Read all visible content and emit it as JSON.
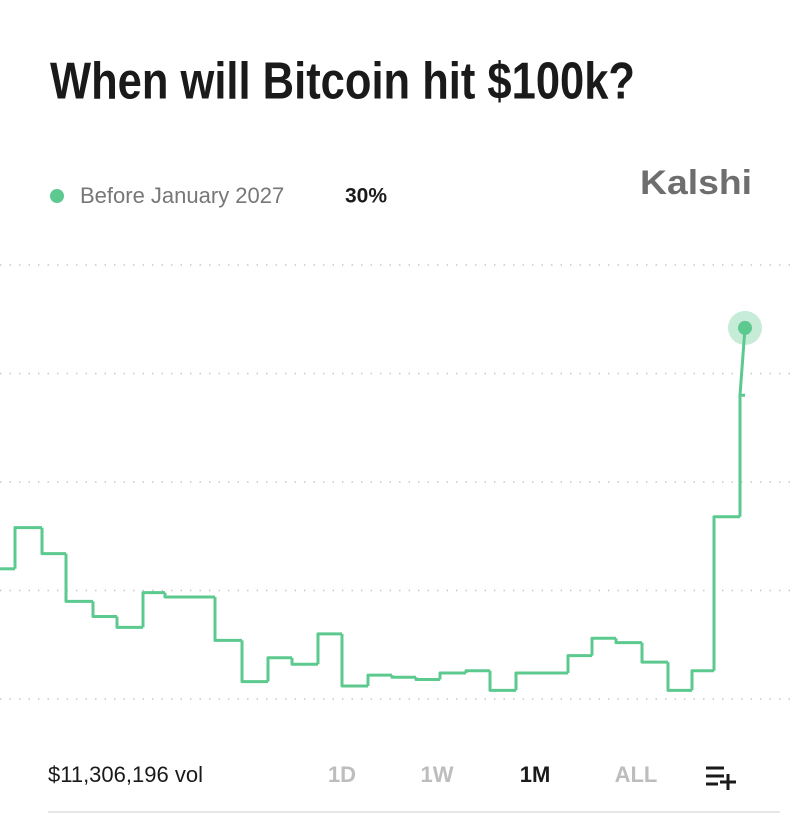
{
  "header": {
    "title": "When will Bitcoin hit $100k?"
  },
  "brand": "Kalshi",
  "chart_data": {
    "type": "step",
    "x": [
      0,
      0.6,
      1.68,
      2.64,
      3.72,
      4.68,
      5.72,
      6.6,
      8.6,
      9.68,
      10.72,
      11.68,
      12.72,
      13.68,
      14.72,
      15.68,
      16.64,
      17.6,
      18.64,
      19.6,
      20.64,
      21.68,
      22.72,
      23.68,
      24.64,
      25.68,
      26.72,
      27.68,
      28.56,
      29.6,
      29.8
    ],
    "series": [
      {
        "name": "Before January 2027",
        "color": "#5cc98f",
        "values": [
          16.0,
          17.9,
          16.7,
          14.5,
          13.8,
          13.3,
          14.9,
          14.7,
          12.7,
          10.8,
          11.9,
          11.6,
          13.0,
          10.6,
          11.1,
          11.0,
          10.9,
          11.2,
          11.3,
          10.4,
          11.2,
          11.2,
          12.0,
          12.8,
          12.6,
          11.7,
          10.4,
          11.3,
          18.4,
          24.0,
          27.1
        ],
        "current": {
          "value": 30,
          "label": "30%"
        }
      }
    ],
    "xlim": [
      0,
      30
    ],
    "ylim": [
      8,
      32
    ],
    "yticks": [
      10,
      15,
      20,
      25,
      30
    ],
    "grid": true
  },
  "footer": {
    "volume": {
      "value": 11306196,
      "label": "$11,306,196"
    },
    "volume_unit": "vol",
    "ranges": [
      "1D",
      "1W",
      "1M",
      "ALL"
    ],
    "active_range": "1M"
  }
}
